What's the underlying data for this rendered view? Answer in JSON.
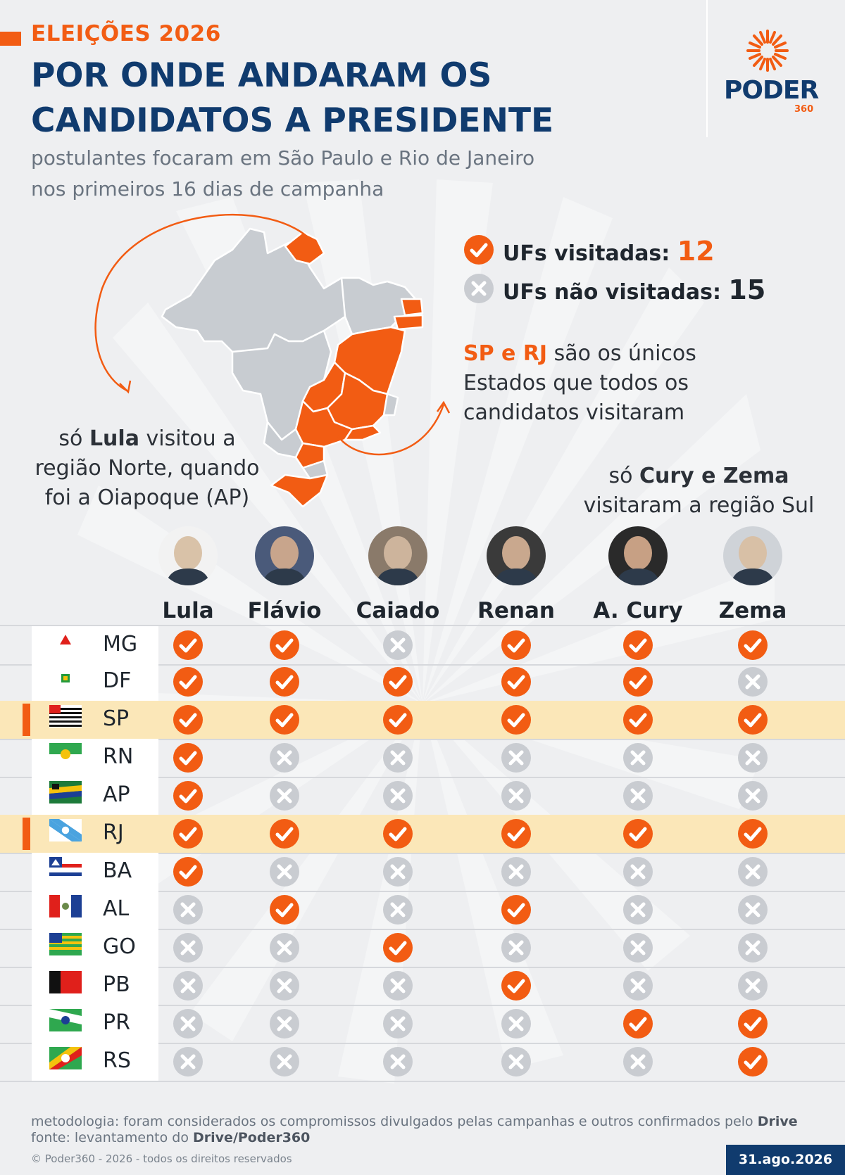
{
  "header": {
    "kicker": "ELEIÇÕES 2026",
    "title_line1": "POR ONDE ANDARAM OS",
    "title_line2": "CANDIDATOS A PRESIDENTE",
    "subtitle_line1": "postulantes focaram em São Paulo e Rio de Janeiro",
    "subtitle_line2": "nos primeiros 16 dias de campanha"
  },
  "logo": {
    "text": "PODER",
    "number": "360"
  },
  "legend": {
    "visited_label": "UFs visitadas:",
    "visited_count": "12",
    "not_visited_label": "UFs não visitadas:",
    "not_visited_count": "15",
    "icons": {
      "visited": "check-icon",
      "not_visited": "x-icon"
    }
  },
  "notes": {
    "sp_rj": {
      "highlight": "SP e RJ",
      "line1_rest": " são os únicos",
      "line2": "Estados que todos os",
      "line3": "candidatos visitaram"
    },
    "lula": {
      "line1_pre": "só ",
      "line1_name": "Lula",
      "line1_rest": " visitou a",
      "line2": "região Norte, quando",
      "line3": "foi a Oiapoque (AP)"
    },
    "sul": {
      "line1_pre": "só ",
      "line1_name": "Cury e Zema",
      "line2": "visitaram a região Sul"
    }
  },
  "candidates": [
    {
      "name": "Lula"
    },
    {
      "name": "Flávio"
    },
    {
      "name": "Caiado"
    },
    {
      "name": "Renan"
    },
    {
      "name": "A. Cury"
    },
    {
      "name": "Zema"
    }
  ],
  "states": [
    {
      "uf": "MG",
      "highlight": false,
      "visits": [
        true,
        true,
        false,
        true,
        true,
        true
      ]
    },
    {
      "uf": "DF",
      "highlight": false,
      "visits": [
        true,
        true,
        true,
        true,
        true,
        false
      ]
    },
    {
      "uf": "SP",
      "highlight": true,
      "visits": [
        true,
        true,
        true,
        true,
        true,
        true
      ]
    },
    {
      "uf": "RN",
      "highlight": false,
      "visits": [
        true,
        false,
        false,
        false,
        false,
        false
      ]
    },
    {
      "uf": "AP",
      "highlight": false,
      "visits": [
        true,
        false,
        false,
        false,
        false,
        false
      ]
    },
    {
      "uf": "RJ",
      "highlight": true,
      "visits": [
        true,
        true,
        true,
        true,
        true,
        true
      ]
    },
    {
      "uf": "BA",
      "highlight": false,
      "visits": [
        true,
        false,
        false,
        false,
        false,
        false
      ]
    },
    {
      "uf": "AL",
      "highlight": false,
      "visits": [
        false,
        true,
        false,
        true,
        false,
        false
      ]
    },
    {
      "uf": "GO",
      "highlight": false,
      "visits": [
        false,
        false,
        true,
        false,
        false,
        false
      ]
    },
    {
      "uf": "PB",
      "highlight": false,
      "visits": [
        false,
        false,
        false,
        true,
        false,
        false
      ]
    },
    {
      "uf": "PR",
      "highlight": false,
      "visits": [
        false,
        false,
        false,
        false,
        true,
        true
      ]
    },
    {
      "uf": "RS",
      "highlight": false,
      "visits": [
        false,
        false,
        false,
        false,
        false,
        true
      ]
    }
  ],
  "colors": {
    "accent": "#f25c13",
    "navy": "#103b6e",
    "grey_mark": "#c9ccd1",
    "highlight_row": "#fbe7b8",
    "map_grey": "#c8ccd1"
  },
  "footer": {
    "method_pre": "metodologia: foram considerados os compromissos divulgados pelas campanhas e outros confirmados pelo ",
    "method_bold": "Drive",
    "source_pre": "fonte: levantamento do ",
    "source_bold": "Drive/Poder360",
    "copyright": "© Poder360 - 2026 - todos os direitos reservados",
    "date": "31.ago.2026"
  }
}
